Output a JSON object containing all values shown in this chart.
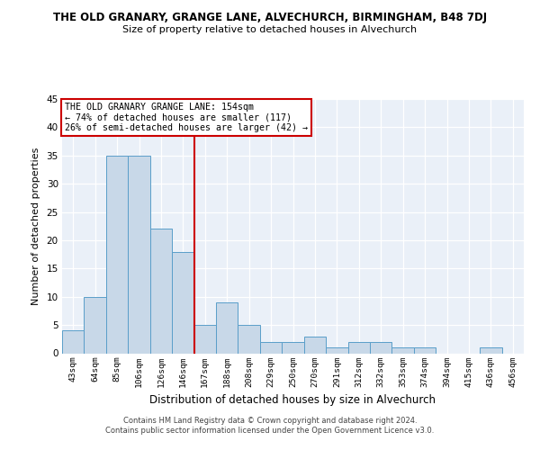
{
  "title1": "THE OLD GRANARY, GRANGE LANE, ALVECHURCH, BIRMINGHAM, B48 7DJ",
  "title2": "Size of property relative to detached houses in Alvechurch",
  "xlabel": "Distribution of detached houses by size in Alvechurch",
  "ylabel": "Number of detached properties",
  "categories": [
    "43sqm",
    "64sqm",
    "85sqm",
    "106sqm",
    "126sqm",
    "146sqm",
    "167sqm",
    "188sqm",
    "208sqm",
    "229sqm",
    "250sqm",
    "270sqm",
    "291sqm",
    "312sqm",
    "332sqm",
    "353sqm",
    "374sqm",
    "394sqm",
    "415sqm",
    "436sqm",
    "456sqm"
  ],
  "values": [
    4,
    10,
    35,
    35,
    22,
    18,
    5,
    9,
    5,
    2,
    2,
    3,
    1,
    2,
    2,
    1,
    1,
    0,
    0,
    1,
    0
  ],
  "bar_color": "#c8d8e8",
  "bar_edge_color": "#5a9ec9",
  "red_line_x": 5.5,
  "annotation_line1": "THE OLD GRANARY GRANGE LANE: 154sqm",
  "annotation_line2": "← 74% of detached houses are smaller (117)",
  "annotation_line3": "26% of semi-detached houses are larger (42) →",
  "annotation_box_color": "#ffffff",
  "annotation_box_edge_color": "#cc0000",
  "ylim": [
    0,
    45
  ],
  "yticks": [
    0,
    5,
    10,
    15,
    20,
    25,
    30,
    35,
    40,
    45
  ],
  "bg_color": "#eaf0f8",
  "footer1": "Contains HM Land Registry data © Crown copyright and database right 2024.",
  "footer2": "Contains public sector information licensed under the Open Government Licence v3.0."
}
